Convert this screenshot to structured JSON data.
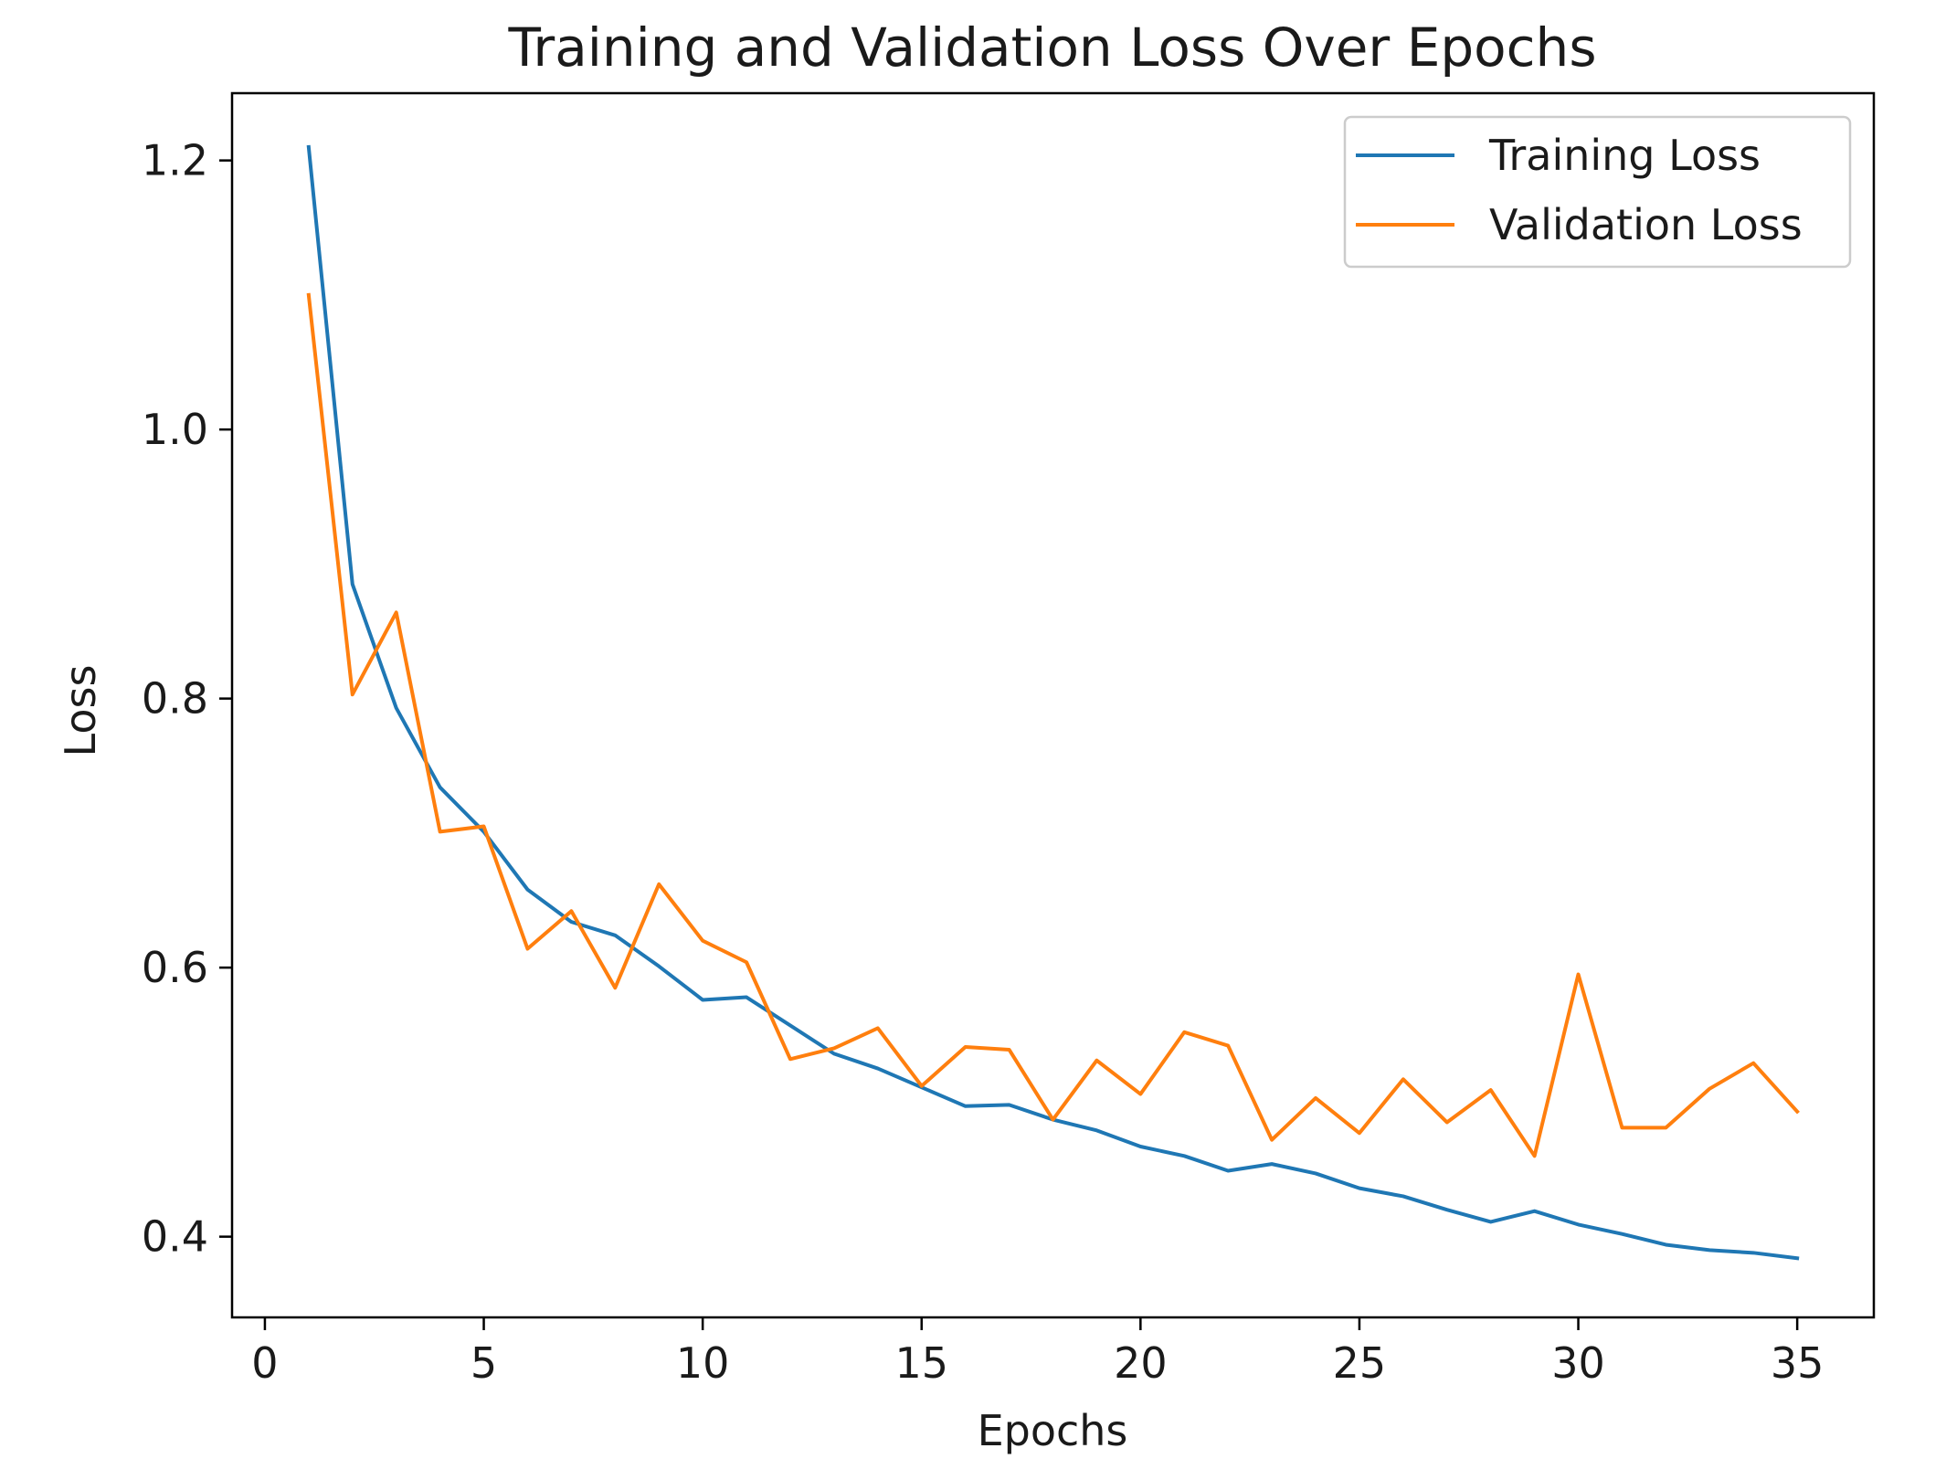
{
  "chart_data": {
    "type": "line",
    "title": "Training and Validation Loss Over Epochs",
    "xlabel": "Epochs",
    "ylabel": "Loss",
    "xlim": [
      -0.75,
      36.75
    ],
    "ylim": [
      0.34,
      1.25
    ],
    "xticks": [
      0,
      5,
      10,
      15,
      20,
      25,
      30,
      35
    ],
    "yticks": [
      0.4,
      0.6,
      0.8,
      1.0,
      1.2
    ],
    "ytick_labels": [
      "0.4",
      "0.6",
      "0.8",
      "1.0",
      "1.2"
    ],
    "grid": false,
    "legend_position": "top-right",
    "x": [
      1,
      2,
      3,
      4,
      5,
      6,
      7,
      8,
      9,
      10,
      11,
      12,
      13,
      14,
      15,
      16,
      17,
      18,
      19,
      20,
      21,
      22,
      23,
      24,
      25,
      26,
      27,
      28,
      29,
      30,
      31,
      32,
      33,
      34,
      35
    ],
    "series": [
      {
        "name": "Training Loss",
        "color": "#1f77b4",
        "values": [
          1.21,
          0.885,
          0.793,
          0.734,
          0.701,
          0.658,
          0.634,
          0.624,
          0.601,
          0.576,
          0.578,
          0.557,
          0.536,
          0.525,
          0.511,
          0.497,
          0.498,
          0.487,
          0.479,
          0.467,
          0.46,
          0.449,
          0.454,
          0.447,
          0.436,
          0.43,
          0.42,
          0.411,
          0.419,
          0.409,
          0.402,
          0.394,
          0.39,
          0.388,
          0.384
        ]
      },
      {
        "name": "Validation Loss",
        "color": "#ff7f0e",
        "values": [
          1.1,
          0.803,
          0.864,
          0.701,
          0.705,
          0.614,
          0.642,
          0.585,
          0.662,
          0.62,
          0.604,
          0.532,
          0.54,
          0.555,
          0.512,
          0.541,
          0.539,
          0.487,
          0.531,
          0.506,
          0.552,
          0.542,
          0.472,
          0.503,
          0.477,
          0.517,
          0.485,
          0.509,
          0.46,
          0.595,
          0.481,
          0.481,
          0.51,
          0.529,
          0.493
        ]
      }
    ]
  }
}
